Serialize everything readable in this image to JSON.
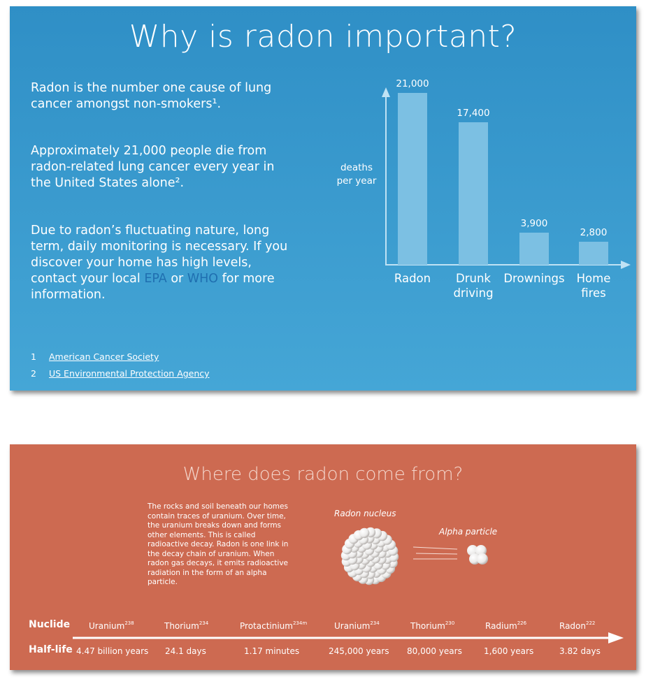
{
  "slide1": {
    "title": "Why is radon important?",
    "paragraphs": {
      "p1": "Radon is the number one cause of lung cancer amongst non-smokers¹.",
      "p2": "Approximately 21,000 people die from radon-related lung cancer every year in the United States alone².",
      "p3_before": "Due to radon’s fluctuating nature, long term, daily monitoring is necessary. If you discover your home has high levels, contact your local ",
      "p3_link1": "EPA",
      "p3_mid": " or ",
      "p3_link2": "WHO",
      "p3_after": " for more information."
    },
    "references": [
      {
        "num": "1",
        "text": "American Cancer Society"
      },
      {
        "num": "2",
        "text": "US Environmental Protection Agency"
      }
    ],
    "colors": {
      "background": "#3a9bd0",
      "bar": "#7cc0e3",
      "link": "#1f6fb0"
    }
  },
  "chart_data": {
    "type": "bar",
    "categories": [
      [
        "Radon"
      ],
      [
        "Drunk",
        "driving"
      ],
      [
        "Drownings"
      ],
      [
        "Home",
        "fires"
      ]
    ],
    "values": [
      21000,
      17400,
      3900,
      2800
    ],
    "value_labels": [
      "21,000",
      "17,400",
      "3,900",
      "2,800"
    ],
    "ylabel": [
      "deaths",
      "per year"
    ],
    "ylim": [
      0,
      21000
    ],
    "grid": false,
    "legend": "none"
  },
  "slide2": {
    "title": "Where does radon come from?",
    "description": "The rocks and soil beneath our homes contain traces of uranium. Over time, the uranium breaks down and forms other elements. This is called radioactive decay. Radon is one link in the decay chain of uranium. When radon gas decays, it emits radioactive radiation in the form of an alpha particle.",
    "diagram": {
      "nucleus_label": "Radon nucleus",
      "alpha_label": "Alpha particle"
    },
    "row_labels": {
      "nuclide": "Nuclide",
      "half_life": "Half-life"
    },
    "chain": [
      {
        "name": "Uranium",
        "mass": "238",
        "half_life": "4.47 billion years"
      },
      {
        "name": "Thorium",
        "mass": "234",
        "half_life": "24.1 days"
      },
      {
        "name": "Protactinium",
        "mass": "234m",
        "half_life": "1.17 minutes"
      },
      {
        "name": "Uranium",
        "mass": "234",
        "half_life": "245,000 years"
      },
      {
        "name": "Thorium",
        "mass": "230",
        "half_life": "80,000 years"
      },
      {
        "name": "Radium",
        "mass": "226",
        "half_life": "1,600 years"
      },
      {
        "name": "Radon",
        "mass": "222",
        "half_life": "3.82 days"
      }
    ],
    "colors": {
      "background": "#cd6a51",
      "title": "#f4d6cc"
    }
  }
}
